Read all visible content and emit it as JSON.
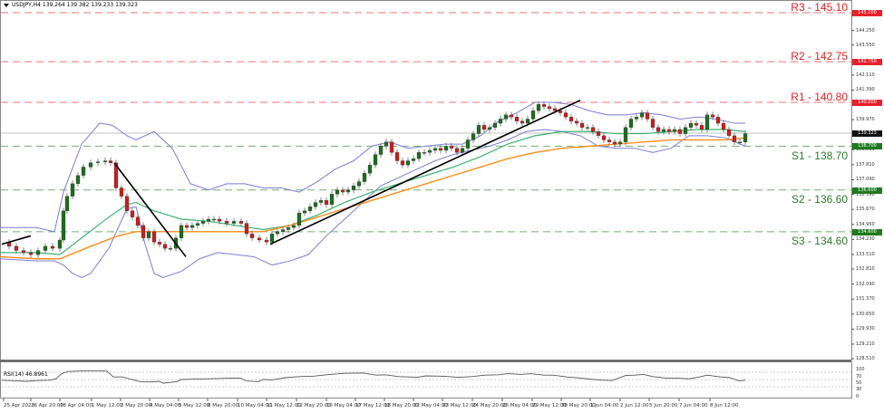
{
  "header": {
    "symbol": "USDJPY,H4",
    "ohlc": "139.264 139.382 139.233 139.323"
  },
  "rsi": {
    "label": "RSI(14) 46.8961",
    "ticks": [
      "100",
      "70",
      "50",
      "30",
      "0"
    ]
  },
  "levels": [
    {
      "id": "R3",
      "label": "R3 - 145.10",
      "price": 145.1,
      "tag": "145.100",
      "type": "resistance"
    },
    {
      "id": "R2",
      "label": "R2 - 142.75",
      "price": 142.75,
      "tag": "142.750",
      "type": "resistance"
    },
    {
      "id": "R1",
      "label": "R1 - 140.80",
      "price": 140.8,
      "tag": "140.800",
      "type": "resistance"
    },
    {
      "id": "S1",
      "label": "S1 - 138.70",
      "price": 138.7,
      "tag": "138.700",
      "type": "support"
    },
    {
      "id": "S2",
      "label": "S2 - 136.60",
      "price": 136.6,
      "tag": "136.600",
      "type": "support"
    },
    {
      "id": "S3",
      "label": "S3 - 134.60",
      "price": 134.6,
      "tag": "134.600",
      "type": "support"
    }
  ],
  "current_price": {
    "value": 139.323,
    "tag": "139.323"
  },
  "colors": {
    "resistance": "#e02020",
    "support": "#2a7a2a",
    "bull_candle": "#1f6b1f",
    "bear_candle": "#c81e1e",
    "bollinger": "#7b7bdc",
    "ma_fast": "#3cb371",
    "ma_slow": "#ff8c1a",
    "trendline": "#000000"
  },
  "y_axis_ticks": [
    "144.970",
    "144.250",
    "143.550",
    "142.110",
    "141.390",
    "139.970",
    "138.530",
    "137.810",
    "137.090",
    "136.390",
    "135.670",
    "134.950",
    "134.230",
    "133.510",
    "132.810",
    "132.090",
    "131.370",
    "130.650",
    "129.930",
    "129.210",
    "128.510"
  ],
  "x_axis_ticks": [
    "25 Apr 2023",
    "26 Apr 20:00",
    "28 Apr 04:00",
    "1 May 12:00",
    "2 May 20:00",
    "4 May 04:00",
    "5 May 12:00",
    "8 May 20:00",
    "10 May 04:00",
    "11 May 12:00",
    "12 May 20:00",
    "16 May 04:00",
    "17 May 12:00",
    "18 May 20:00",
    "22 May 04:00",
    "23 May 12:00",
    "24 May 20:00",
    "26 May 04:00",
    "29 May 12:00",
    "30 May 20:00",
    "1 Jun 04:00",
    "2 Jun 12:00",
    "5 Jun 20:00",
    "7 Jun 04:00",
    "8 Jun 12:00"
  ],
  "chart_data": {
    "type": "candlestick",
    "title": "USDJPY,H4",
    "instrument": "USDJPY",
    "timeframe": "H4",
    "last_ohlc": {
      "open": 139.264,
      "high": 139.382,
      "low": 139.233,
      "close": 139.323
    },
    "ylim": [
      128.51,
      145.1
    ],
    "x": [
      "25 Apr 2023",
      "26 Apr 20:00",
      "28 Apr 04:00",
      "1 May 12:00",
      "2 May 20:00",
      "4 May 04:00",
      "5 May 12:00",
      "8 May 20:00",
      "10 May 04:00",
      "11 May 12:00",
      "12 May 20:00",
      "16 May 04:00",
      "17 May 12:00",
      "18 May 20:00",
      "22 May 04:00",
      "23 May 12:00",
      "24 May 20:00",
      "26 May 04:00",
      "29 May 12:00",
      "30 May 20:00",
      "1 Jun 04:00",
      "2 Jun 12:00",
      "5 Jun 20:00",
      "7 Jun 04:00",
      "8 Jun 12:00"
    ],
    "series": [
      {
        "name": "close_approx",
        "values": [
          133.9,
          133.8,
          136.5,
          137.6,
          135.9,
          134.5,
          135.2,
          135.4,
          134.8,
          134.3,
          135.8,
          136.8,
          137.4,
          138.2,
          138.0,
          138.7,
          139.6,
          140.2,
          140.5,
          139.7,
          139.2,
          139.8,
          139.7,
          139.7,
          139.3
        ]
      },
      {
        "name": "RSI(14)",
        "values": [
          45,
          48,
          72,
          74,
          58,
          40,
          50,
          54,
          52,
          47,
          60,
          66,
          70,
          62,
          60,
          58,
          64,
          66,
          56,
          46,
          44,
          62,
          54,
          56,
          47
        ]
      }
    ],
    "horizontal_levels": [
      {
        "name": "R3",
        "value": 145.1
      },
      {
        "name": "R2",
        "value": 142.75
      },
      {
        "name": "R1",
        "value": 140.8
      },
      {
        "name": "S1",
        "value": 138.7
      },
      {
        "name": "S2",
        "value": 136.6
      },
      {
        "name": "S3",
        "value": 134.6
      }
    ],
    "indicators": [
      "Bollinger Bands",
      "Moving Average (green)",
      "Moving Average (orange)",
      "RSI(14)"
    ],
    "rsi_levels": [
      70,
      50,
      30
    ],
    "rsi_last": 46.8961,
    "trendlines": [
      {
        "type": "downtrend",
        "from": "1 May 12:00",
        "to": "5 May"
      },
      {
        "type": "uptrend",
        "from": "11 May",
        "to": "29 May"
      }
    ]
  }
}
